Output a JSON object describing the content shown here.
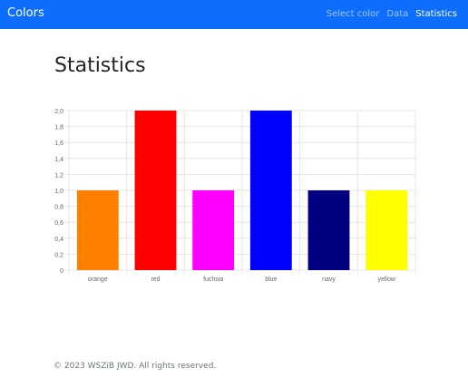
{
  "navbar": {
    "brand": "Colors",
    "links": [
      "Select color",
      "Data",
      "Statistics"
    ],
    "active_index": 2,
    "background": "#0d6efd"
  },
  "page": {
    "title": "Statistics"
  },
  "chart_data": {
    "type": "bar",
    "categories": [
      "orange",
      "red",
      "fuchsia",
      "blue",
      "navy",
      "yellow"
    ],
    "values": [
      1,
      2,
      1,
      2,
      1,
      1
    ],
    "colors": [
      "#ff8000",
      "#ff0000",
      "#ff00ff",
      "#0000ff",
      "#000080",
      "#ffff00"
    ],
    "yticks": [
      "0",
      "0,2",
      "0,4",
      "0,6",
      "0,8",
      "1,0",
      "1,2",
      "1,4",
      "1,6",
      "1,8",
      "2,0"
    ],
    "ylim": [
      0,
      2
    ],
    "grid": true,
    "title": "",
    "xlabel": "",
    "ylabel": ""
  },
  "footer": {
    "text": "© 2023 WSZiB JWD. All rights reserved."
  }
}
